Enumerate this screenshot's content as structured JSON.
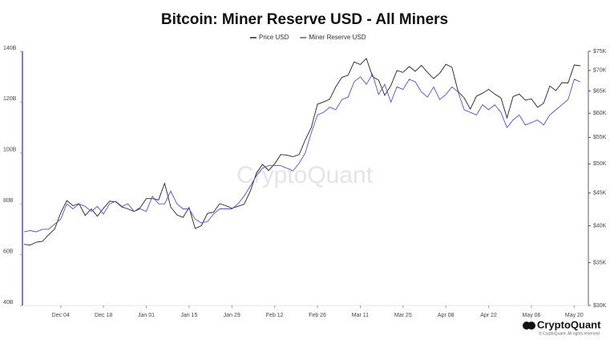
{
  "chart_data": {
    "type": "line",
    "title": "Bitcoin: Miner Reserve USD - All Miners",
    "watermark": "CryptoQuant",
    "brand": "CryptoQuant",
    "copyright": "© CryptoQuant. All rights reserved",
    "categories": [
      null,
      null,
      null,
      null,
      null,
      null,
      "Dec 04",
      null,
      null,
      null,
      null,
      null,
      null,
      "Dec 18",
      null,
      null,
      null,
      null,
      null,
      null,
      "Jan 01",
      null,
      null,
      null,
      null,
      null,
      null,
      "Jan 15",
      null,
      null,
      null,
      null,
      null,
      null,
      "Jan 29",
      null,
      null,
      null,
      null,
      null,
      null,
      "Feb 12",
      null,
      null,
      null,
      null,
      null,
      null,
      "Feb 26",
      null,
      null,
      null,
      null,
      null,
      null,
      "Mar 11",
      null,
      null,
      null,
      null,
      null,
      null,
      "Mar 25",
      null,
      null,
      null,
      null,
      null,
      null,
      "Apr 08",
      null,
      null,
      null,
      null,
      null,
      null,
      "Apr 22",
      null,
      null,
      null,
      null,
      null,
      null,
      "May 06",
      null,
      null,
      null,
      null,
      null,
      null,
      "May 20",
      null
    ],
    "series": [
      {
        "name": "Price USD",
        "color": "#222222",
        "axis": "y2",
        "values": [
          37400,
          37300,
          37700,
          37800,
          38700,
          39500,
          41900,
          43800,
          43000,
          43300,
          41500,
          42500,
          41400,
          42600,
          43700,
          43600,
          42800,
          42500,
          42100,
          42700,
          44100,
          44100,
          43900,
          46600,
          42800,
          41600,
          41200,
          42700,
          39600,
          40000,
          41800,
          42000,
          43300,
          43000,
          42600,
          42900,
          43200,
          45300,
          48300,
          49900,
          48800,
          50000,
          51700,
          51600,
          51300,
          51700,
          54500,
          57000,
          62000,
          62500,
          63100,
          66000,
          68300,
          68800,
          72200,
          71500,
          73100,
          68500,
          67600,
          64000,
          66300,
          70000,
          69500,
          71000,
          69800,
          71300,
          69500,
          68000,
          69300,
          71600,
          70800,
          64900,
          63400,
          60900,
          63800,
          64500,
          65400,
          64300,
          63400,
          59000,
          63700,
          64300,
          62900,
          63200,
          61300,
          62200,
          66200,
          65100,
          67000,
          66900,
          71400,
          71200
        ]
      },
      {
        "name": "Miner Reserve USD",
        "color": "#5b4fc9",
        "values": [
          69,
          69.5,
          69,
          70,
          70,
          72,
          74,
          80,
          78,
          80,
          79,
          77,
          79,
          76,
          80,
          81,
          79,
          80,
          77,
          78,
          77,
          83,
          80,
          80,
          85,
          80,
          78,
          78,
          74,
          72.5,
          73,
          76,
          78,
          78,
          78,
          80,
          83,
          87,
          91,
          94,
          95,
          95,
          95,
          94,
          93,
          96,
          100,
          108,
          115,
          116,
          118,
          117,
          121,
          122,
          128,
          130,
          127,
          131,
          123,
          127,
          120,
          126,
          125,
          129,
          128,
          124,
          122,
          126,
          121,
          123,
          126,
          124,
          117,
          116,
          115,
          119,
          117,
          119,
          116,
          110,
          113,
          115,
          111,
          112,
          113,
          111,
          115,
          117,
          119,
          121,
          129,
          128
        ]
      }
    ],
    "ylim": [
      40,
      140
    ],
    "yticks": [
      {
        "value": 40,
        "label": "40B"
      },
      {
        "value": 60,
        "label": "60B"
      },
      {
        "value": 80,
        "label": "80B"
      },
      {
        "value": 100,
        "label": "100B"
      },
      {
        "value": 120,
        "label": "120B"
      },
      {
        "value": 140,
        "label": "140B"
      }
    ],
    "y2lim": [
      30000,
      75000
    ],
    "y2log": true,
    "y2ticks": [
      {
        "value": 30000,
        "label": "$30K"
      },
      {
        "value": 35000,
        "label": "$35K"
      },
      {
        "value": 40000,
        "label": "$40K"
      },
      {
        "value": 45000,
        "label": "$45K"
      },
      {
        "value": 50000,
        "label": "$50K"
      },
      {
        "value": 55000,
        "label": "$55K"
      },
      {
        "value": 60000,
        "label": "$60K"
      },
      {
        "value": 65000,
        "label": "$65K"
      },
      {
        "value": 70000,
        "label": "$70K"
      },
      {
        "value": 75000,
        "label": "$75K"
      }
    ],
    "grid": false,
    "legend": "top"
  }
}
